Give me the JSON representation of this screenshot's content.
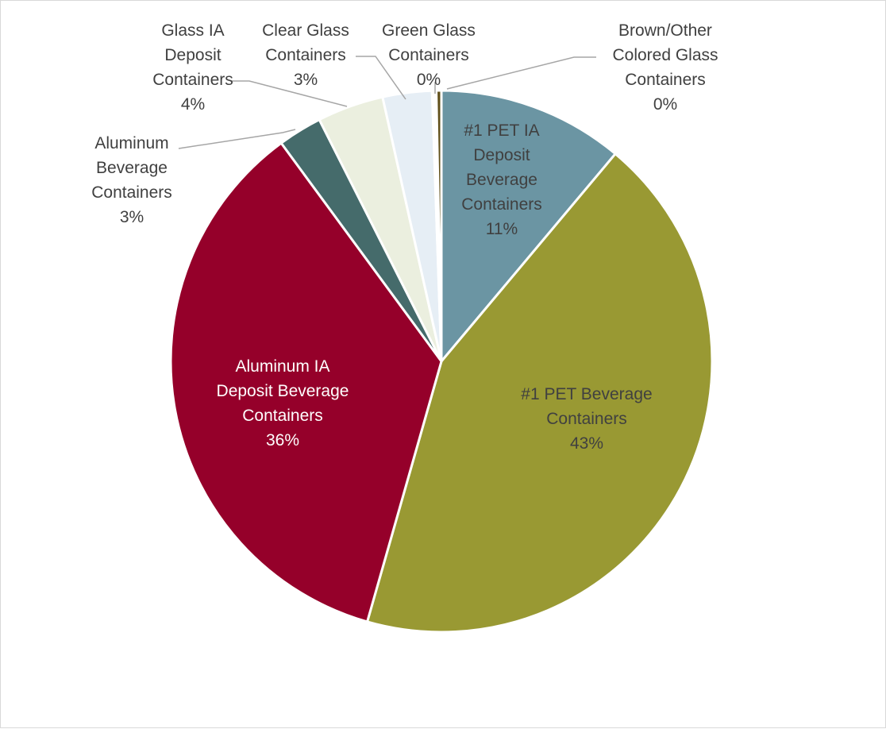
{
  "chart_data": {
    "type": "pie",
    "title": "",
    "legend": "none",
    "categories": [
      "#1 PET IA Deposit Beverage Containers",
      "#1 PET Beverage Containers",
      "Aluminum IA Deposit Beverage Containers",
      "Aluminum Beverage Containers",
      "Glass IA Deposit Containers",
      "Clear Glass Containers",
      "Green Glass Containers",
      "Brown/Other Colored Glass Containers"
    ],
    "values": [
      11,
      43,
      36,
      3,
      4,
      3,
      0,
      0
    ],
    "slice_shares": [
      11.14,
      43.44,
      35.61,
      2.64,
      3.97,
      2.95,
      0.25,
      0.3
    ],
    "colors": [
      "#6b95a3",
      "#999933",
      "#95002a",
      "#456b6b",
      "#ebefdf",
      "#e6eef5",
      "#ffffff",
      "#61501a"
    ],
    "labels": [
      {
        "lines": [
          "#1 PET IA",
          "Deposit",
          "Beverage",
          "Containers",
          "11%"
        ],
        "color": "#404040"
      },
      {
        "lines": [
          "#1 PET Beverage",
          "Containers",
          "43%"
        ],
        "color": "#404040"
      },
      {
        "lines": [
          "Aluminum IA",
          "Deposit Beverage",
          "Containers",
          "36%"
        ],
        "color": "#ffffff"
      },
      {
        "lines": [
          "Aluminum",
          "Beverage",
          "Containers",
          "3%"
        ],
        "color": "#404040"
      },
      {
        "lines": [
          "Glass IA",
          "Deposit",
          "Containers",
          "4%"
        ],
        "color": "#404040"
      },
      {
        "lines": [
          "Clear Glass",
          "Containers",
          "3%"
        ],
        "color": "#404040"
      },
      {
        "lines": [
          "Green Glass",
          "Containers",
          "0%"
        ],
        "color": "#404040"
      },
      {
        "lines": [
          "Brown/Other",
          "Colored Glass",
          "Containers",
          "0%"
        ],
        "color": "#404040"
      }
    ]
  }
}
